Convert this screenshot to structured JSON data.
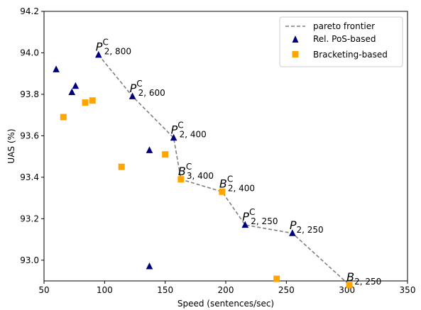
{
  "chart_data": {
    "type": "scatter",
    "xlabel": "Speed (sentences/sec)",
    "ylabel": "UAS (%)",
    "xlim": [
      50,
      350
    ],
    "ylim": [
      92.9,
      94.2
    ],
    "xticks": [
      50,
      100,
      150,
      200,
      250,
      300,
      350
    ],
    "yticks": [
      93.0,
      93.2,
      93.4,
      93.6,
      93.8,
      94.0,
      94.2
    ],
    "xtick_labels": [
      "50",
      "100",
      "150",
      "200",
      "250",
      "300",
      "350"
    ],
    "ytick_labels": [
      "93.0",
      "93.2",
      "93.4",
      "93.6",
      "93.8",
      "94.0",
      "94.2"
    ],
    "grid": false,
    "legend_position": "top-right",
    "legend": [
      "pareto frontier",
      "Rel. PoS-based",
      "Bracketing-based"
    ],
    "series": [
      {
        "name": "Rel. PoS-based",
        "marker": "triangle",
        "color": "#00007f",
        "points": [
          {
            "x": 60,
            "y": 93.92
          },
          {
            "x": 73,
            "y": 93.81
          },
          {
            "x": 76,
            "y": 93.84
          },
          {
            "x": 95,
            "y": 93.99
          },
          {
            "x": 123,
            "y": 93.79
          },
          {
            "x": 137,
            "y": 93.53
          },
          {
            "x": 137,
            "y": 92.97
          },
          {
            "x": 157,
            "y": 93.59
          },
          {
            "x": 216,
            "y": 93.17
          },
          {
            "x": 255,
            "y": 93.13
          }
        ]
      },
      {
        "name": "Bracketing-based",
        "marker": "square",
        "color": "#ffa500",
        "points": [
          {
            "x": 66,
            "y": 93.69
          },
          {
            "x": 84,
            "y": 93.76
          },
          {
            "x": 90,
            "y": 93.77
          },
          {
            "x": 114,
            "y": 93.45
          },
          {
            "x": 150,
            "y": 93.51
          },
          {
            "x": 163,
            "y": 93.39
          },
          {
            "x": 197,
            "y": 93.33
          },
          {
            "x": 242,
            "y": 92.91
          },
          {
            "x": 302,
            "y": 92.88
          }
        ]
      },
      {
        "name": "pareto frontier",
        "style": "dashed-line",
        "color": "#808080",
        "points": [
          {
            "x": 95,
            "y": 93.99
          },
          {
            "x": 123,
            "y": 93.79
          },
          {
            "x": 157,
            "y": 93.59
          },
          {
            "x": 163,
            "y": 93.39
          },
          {
            "x": 197,
            "y": 93.33
          },
          {
            "x": 216,
            "y": 93.17
          },
          {
            "x": 255,
            "y": 93.13
          },
          {
            "x": 302,
            "y": 92.88
          }
        ]
      }
    ],
    "annotations": [
      {
        "x": 95,
        "y": 93.99,
        "base": "P",
        "sub": "2, 800",
        "sup": "C"
      },
      {
        "x": 123,
        "y": 93.79,
        "base": "P",
        "sub": "2, 600",
        "sup": "C"
      },
      {
        "x": 157,
        "y": 93.59,
        "base": "P",
        "sub": "2, 400",
        "sup": "C"
      },
      {
        "x": 163,
        "y": 93.39,
        "base": "B",
        "sub": "3, 400",
        "sup": "C"
      },
      {
        "x": 197,
        "y": 93.33,
        "base": "B",
        "sub": "2, 400",
        "sup": "C"
      },
      {
        "x": 216,
        "y": 93.17,
        "base": "P",
        "sub": "2, 250",
        "sup": "C"
      },
      {
        "x": 255,
        "y": 93.13,
        "base": "P",
        "sub": "2, 250",
        "sup": ""
      },
      {
        "x": 302,
        "y": 92.88,
        "base": "B",
        "sub": "2, 250",
        "sup": ""
      }
    ]
  }
}
